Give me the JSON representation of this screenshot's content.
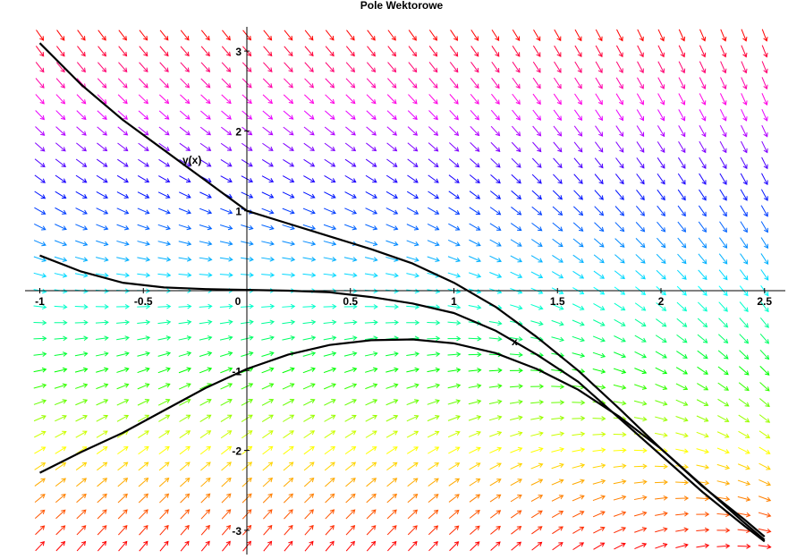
{
  "chart_data": {
    "type": "vector-field",
    "title": "Pole Wektorowe",
    "xlabel": "x",
    "ylabel": "y(x)",
    "xlim": [
      -1,
      2.5
    ],
    "ylim": [
      -3.2,
      3.2
    ],
    "x_ticks": [
      {
        "value": -1,
        "label": "-1"
      },
      {
        "value": -0.5,
        "label": "-0.5"
      },
      {
        "value": 0,
        "label": "0"
      },
      {
        "value": 0.5,
        "label": "0.5"
      },
      {
        "value": 1,
        "label": "1"
      },
      {
        "value": 1.5,
        "label": "1.5"
      },
      {
        "value": 2,
        "label": "2"
      },
      {
        "value": 2.5,
        "label": "2.5"
      }
    ],
    "y_ticks": [
      {
        "value": 3,
        "label": "3"
      },
      {
        "value": 2,
        "label": "2"
      },
      {
        "value": 1,
        "label": "1"
      },
      {
        "value": -1,
        "label": "-1"
      },
      {
        "value": -2,
        "label": "-2"
      },
      {
        "value": -3,
        "label": "-3"
      }
    ],
    "field": {
      "x_count": 36,
      "y_count": 33,
      "color_scheme": "rainbow by y (red bottom/top, yellow, green, cyan, blue, magenta)"
    },
    "series": [
      {
        "x": [
          -1,
          -0.8,
          -0.6,
          -0.4,
          -0.2,
          0,
          0.2,
          0.4,
          0.6,
          0.8,
          1,
          1.2,
          1.4,
          1.6,
          1.8,
          2,
          2.2,
          2.4,
          2.5
        ],
        "y": [
          3.1,
          2.58,
          2.14,
          1.76,
          1.38,
          1.0,
          0.84,
          0.68,
          0.52,
          0.34,
          0.1,
          -0.2,
          -0.58,
          -1.0,
          -1.48,
          -1.98,
          -2.45,
          -2.86,
          -3.08
        ]
      },
      {
        "x": [
          -1,
          -0.8,
          -0.6,
          -0.4,
          -0.2,
          0,
          0.2,
          0.4,
          0.6,
          0.8,
          1,
          1.2,
          1.4,
          1.6,
          1.8,
          2,
          2.2,
          2.4,
          2.5
        ],
        "y": [
          0.44,
          0.24,
          0.1,
          0.04,
          0.02,
          0.01,
          0.0,
          -0.02,
          -0.08,
          -0.16,
          -0.28,
          -0.5,
          -0.8,
          -1.14,
          -1.6,
          -2.06,
          -2.52,
          -2.94,
          -3.14
        ]
      },
      {
        "x": [
          -1,
          -0.8,
          -0.6,
          -0.4,
          -0.2,
          0,
          0.2,
          0.4,
          0.6,
          0.8,
          1,
          1.2,
          1.4,
          1.6,
          1.8,
          2,
          2.2,
          2.4,
          2.5
        ],
        "y": [
          -2.28,
          -2.02,
          -1.78,
          -1.5,
          -1.22,
          -0.98,
          -0.8,
          -0.68,
          -0.62,
          -0.61,
          -0.66,
          -0.78,
          -0.98,
          -1.24,
          -1.58,
          -1.98,
          -2.44,
          -2.9,
          -3.12
        ]
      }
    ]
  }
}
